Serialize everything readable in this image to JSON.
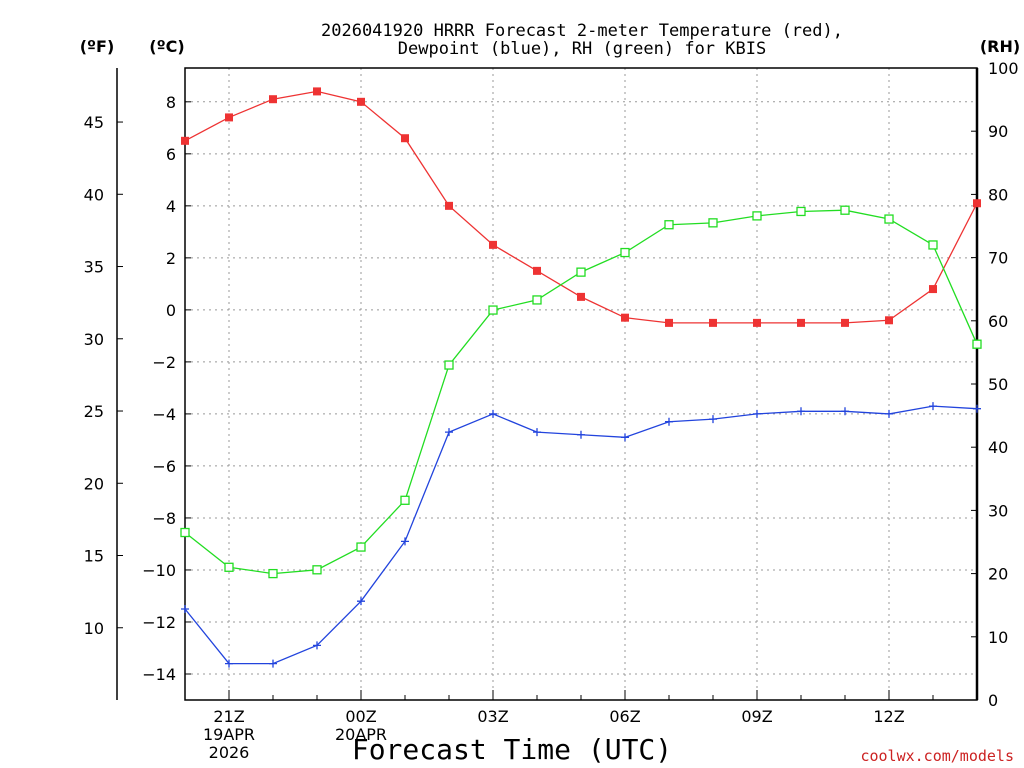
{
  "chart_data": {
    "type": "line",
    "title_lines": [
      "2026041920 HRRR Forecast 2-meter Temperature (red),",
      "Dewpoint (blue), RH (green) for KBIS"
    ],
    "xlabel": "Forecast Time (UTC)",
    "credit": "coolwx.com/models",
    "units": {
      "fahrenheit": "(ºF)",
      "celsius": "(ºC)",
      "rh": "(RH)"
    },
    "x_hours": [
      0,
      1,
      2,
      3,
      4,
      5,
      6,
      7,
      8,
      9,
      10,
      11,
      12,
      13,
      14,
      15,
      16,
      17,
      18
    ],
    "x_tick_labels": [
      {
        "hour": 1,
        "lines": [
          "21Z",
          "19APR",
          "2026"
        ]
      },
      {
        "hour": 4,
        "lines": [
          "00Z",
          "20APR"
        ]
      },
      {
        "hour": 7,
        "lines": [
          "03Z"
        ]
      },
      {
        "hour": 10,
        "lines": [
          "06Z"
        ]
      },
      {
        "hour": 13,
        "lines": [
          "09Z"
        ]
      },
      {
        "hour": 16,
        "lines": [
          "12Z"
        ]
      }
    ],
    "celsius_axis": {
      "range": [
        -15,
        9.3
      ],
      "ticks": [
        -14,
        -12,
        -10,
        -8,
        -6,
        -4,
        -2,
        0,
        2,
        4,
        6,
        8
      ]
    },
    "fahrenheit_axis": {
      "ticks": [
        10,
        15,
        20,
        25,
        30,
        35,
        40,
        45
      ]
    },
    "rh_axis": {
      "range": [
        0,
        100
      ],
      "ticks": [
        0,
        10,
        20,
        30,
        40,
        50,
        60,
        70,
        80,
        90,
        100
      ]
    },
    "colors": {
      "temperature": "#ee3333",
      "dewpoint": "#2244dd",
      "rh": "#22dd22",
      "credit": "#cc2222",
      "grid": "#999999"
    },
    "series": [
      {
        "name": "Temperature (°C)",
        "axis": "celsius",
        "marker": "filled-square",
        "values": [
          6.5,
          7.4,
          8.1,
          8.4,
          8.0,
          6.6,
          4.0,
          2.5,
          1.5,
          0.5,
          -0.3,
          -0.5,
          -0.5,
          -0.5,
          -0.5,
          -0.5,
          -0.4,
          0.8,
          4.1
        ]
      },
      {
        "name": "Dewpoint (°C)",
        "axis": "celsius",
        "marker": "plus",
        "values": [
          -11.5,
          -13.6,
          -13.6,
          -12.9,
          -11.2,
          -8.9,
          -4.7,
          -4.0,
          -4.7,
          -4.8,
          -4.9,
          -4.3,
          -4.2,
          -4.0,
          -3.9,
          -3.9,
          -4.0,
          -3.7,
          -3.8
        ]
      },
      {
        "name": "RH (%)",
        "axis": "rh",
        "marker": "open-square",
        "values": [
          26.5,
          21.0,
          20.0,
          20.6,
          24.2,
          31.6,
          53.0,
          61.7,
          63.3,
          67.7,
          70.8,
          75.2,
          75.5,
          76.6,
          77.3,
          77.5,
          76.1,
          72.0,
          56.3
        ]
      }
    ]
  }
}
